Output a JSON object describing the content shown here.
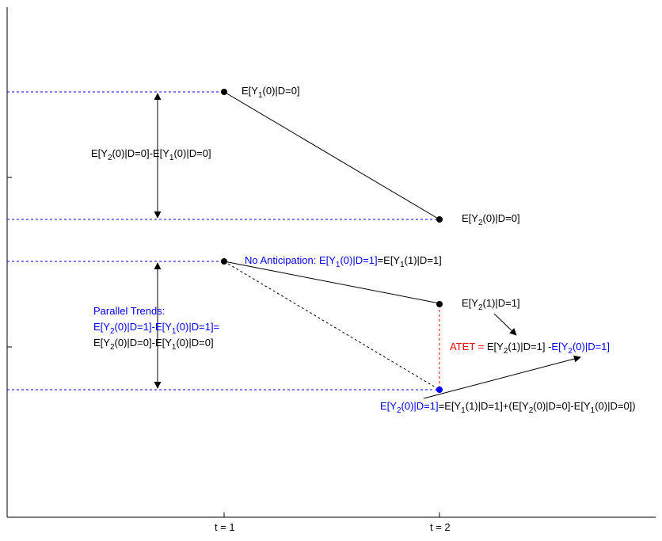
{
  "axes": {
    "x_ticks": [
      "t = 1",
      "t = 2"
    ]
  },
  "labels": {
    "control_t1": {
      "parts": [
        {
          "t": "E[Y",
          "c": "ink"
        },
        {
          "t": "1",
          "c": "ink",
          "sub": true
        },
        {
          "t": "(0)|D=0]",
          "c": "ink"
        }
      ]
    },
    "control_t2": {
      "parts": [
        {
          "t": "E[Y",
          "c": "ink"
        },
        {
          "t": "2",
          "c": "ink",
          "sub": true
        },
        {
          "t": "(0)|D=0]",
          "c": "ink"
        }
      ]
    },
    "control_diff": {
      "parts": [
        {
          "t": "E[Y",
          "c": "ink"
        },
        {
          "t": "2",
          "c": "ink",
          "sub": true
        },
        {
          "t": "(0)|D=0]-E[Y",
          "c": "ink"
        },
        {
          "t": "1",
          "c": "ink",
          "sub": true
        },
        {
          "t": "(0)|D=0]",
          "c": "ink"
        }
      ]
    },
    "no_anticipation": {
      "parts": [
        {
          "t": "No Anticipation: E[Y",
          "c": "blue"
        },
        {
          "t": "1",
          "c": "blue",
          "sub": true
        },
        {
          "t": "(0)|D=1]",
          "c": "blue"
        },
        {
          "t": "=E[Y",
          "c": "ink"
        },
        {
          "t": "1",
          "c": "ink",
          "sub": true
        },
        {
          "t": "(1)|D=1]",
          "c": "ink"
        }
      ]
    },
    "treated_t2": {
      "parts": [
        {
          "t": "E[Y",
          "c": "ink"
        },
        {
          "t": "2",
          "c": "ink",
          "sub": true
        },
        {
          "t": "(1)|D=1]",
          "c": "ink"
        }
      ]
    },
    "parallel_title": {
      "parts": [
        {
          "t": "Parallel Trends:",
          "c": "blue"
        }
      ]
    },
    "parallel_line1": {
      "parts": [
        {
          "t": "E[Y",
          "c": "blue"
        },
        {
          "t": "2",
          "c": "blue",
          "sub": true
        },
        {
          "t": "(0)|D=1]-E[Y",
          "c": "blue"
        },
        {
          "t": "1",
          "c": "blue",
          "sub": true
        },
        {
          "t": "(0)|D=1]=",
          "c": "blue"
        }
      ]
    },
    "parallel_line2": {
      "parts": [
        {
          "t": "E[Y",
          "c": "ink"
        },
        {
          "t": "2",
          "c": "ink",
          "sub": true
        },
        {
          "t": "(0)|D=0]-E[Y",
          "c": "ink"
        },
        {
          "t": "1",
          "c": "ink",
          "sub": true
        },
        {
          "t": "(0)|D=0]",
          "c": "ink"
        }
      ]
    },
    "atet": {
      "parts": [
        {
          "t": "ATET = ",
          "c": "red"
        },
        {
          "t": "E[Y",
          "c": "ink"
        },
        {
          "t": "2",
          "c": "ink",
          "sub": true
        },
        {
          "t": "(1)|D=1] -",
          "c": "ink"
        },
        {
          "t": "E[Y",
          "c": "blue"
        },
        {
          "t": "2",
          "c": "blue",
          "sub": true
        },
        {
          "t": "(0)|D=1]",
          "c": "blue"
        }
      ]
    },
    "counterfactual": {
      "parts": [
        {
          "t": "E[Y",
          "c": "blue"
        },
        {
          "t": "2",
          "c": "blue",
          "sub": true
        },
        {
          "t": "(0)|D=1]",
          "c": "blue"
        },
        {
          "t": "=E[Y",
          "c": "ink"
        },
        {
          "t": "1",
          "c": "ink",
          "sub": true
        },
        {
          "t": "(1)|D=1]+(E[Y",
          "c": "ink"
        },
        {
          "t": "2",
          "c": "ink",
          "sub": true
        },
        {
          "t": "(0)|D=0]-E[Y",
          "c": "ink"
        },
        {
          "t": "1",
          "c": "ink",
          "sub": true
        },
        {
          "t": "(0)|D=0])",
          "c": "ink"
        }
      ]
    }
  },
  "colors": {
    "black": "#000000",
    "blue": "#0000ff",
    "red": "#ff0000"
  }
}
